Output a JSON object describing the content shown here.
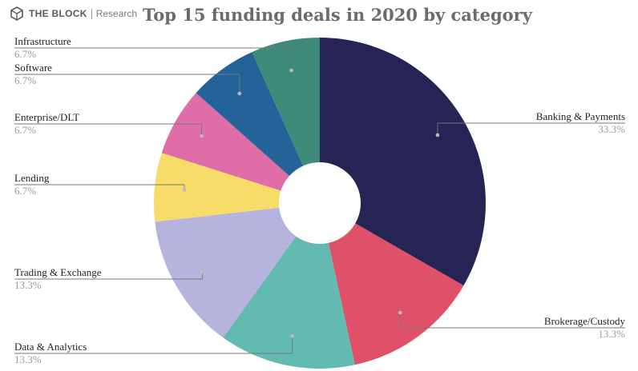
{
  "brand": {
    "name": "THE BLOCK",
    "sub": "Research",
    "logo_icon": "cube-icon"
  },
  "chart_data": {
    "type": "pie",
    "donut": true,
    "title": "Top 15 funding deals in 2020 by category",
    "slices": [
      {
        "label": "Banking & Payments",
        "value": 33.3,
        "pct_label": "33.3%",
        "color": "#262455",
        "side": "right"
      },
      {
        "label": "Brokerage/Custody",
        "value": 13.3,
        "pct_label": "13.3%",
        "color": "#df5168",
        "side": "right"
      },
      {
        "label": "Data & Analytics",
        "value": 13.3,
        "pct_label": "13.3%",
        "color": "#62bab1",
        "side": "left"
      },
      {
        "label": "Trading & Exchange",
        "value": 13.3,
        "pct_label": "13.3%",
        "color": "#b6b4de",
        "side": "left"
      },
      {
        "label": "Lending",
        "value": 6.7,
        "pct_label": "6.7%",
        "color": "#f7dc69",
        "side": "left"
      },
      {
        "label": "Enterprise/DLT",
        "value": 6.7,
        "pct_label": "6.7%",
        "color": "#de6da8",
        "side": "left"
      },
      {
        "label": "Software",
        "value": 6.7,
        "pct_label": "6.7%",
        "color": "#246398",
        "side": "left"
      },
      {
        "label": "Infrastructure",
        "value": 6.7,
        "pct_label": "6.7%",
        "color": "#3f8b7a",
        "side": "left"
      }
    ]
  }
}
